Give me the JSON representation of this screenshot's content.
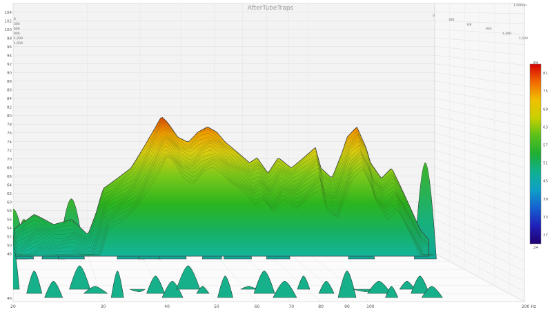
{
  "chart_data": {
    "type": "waterfall",
    "title": "AfterTubeTraps",
    "xscale": "log",
    "xlim": [
      20,
      200
    ],
    "x_ticks": [
      {
        "value": 20,
        "label": "20"
      },
      {
        "value": 30,
        "label": "30"
      },
      {
        "value": 40,
        "label": "40"
      },
      {
        "value": 50,
        "label": "50"
      },
      {
        "value": 60,
        "label": "60"
      },
      {
        "value": 70,
        "label": "70"
      },
      {
        "value": 80,
        "label": "80"
      },
      {
        "value": 90,
        "label": "90"
      },
      {
        "value": 100,
        "label": "100"
      },
      {
        "value": 200,
        "label": "200 Hz"
      }
    ],
    "ylim": [
      46,
      104
    ],
    "y_ticks": [
      "46",
      "48",
      "50",
      "52",
      "54",
      "56",
      "58",
      "60",
      "62",
      "64",
      "66",
      "68",
      "70",
      "72",
      "74",
      "76",
      "78",
      "80",
      "82",
      "84",
      "86",
      "88",
      "90",
      "92",
      "94",
      "96",
      "98",
      "100",
      "102",
      "104"
    ],
    "time_axis_labels": [
      "0",
      "395",
      "3|8",
      "903",
      "1,200",
      "1,500",
      "1,500ms"
    ],
    "time_axis_left_labels": [
      "0",
      "300",
      "600",
      "900",
      "1,200",
      "1,500"
    ],
    "colorbar": {
      "min": 24,
      "max": 84,
      "ticks": [
        "84",
        "81",
        "75",
        "69",
        "63",
        "57",
        "51",
        "45",
        "39",
        "33",
        "27",
        "24"
      ]
    },
    "front_trace": {
      "x": [
        20,
        22,
        24,
        26,
        28,
        29,
        30,
        32,
        34,
        36,
        38,
        39,
        40,
        42,
        44,
        46,
        48,
        50,
        52,
        55,
        58,
        60,
        63,
        66,
        70,
        74,
        78,
        80,
        84,
        88,
        90,
        94,
        98,
        100,
        105,
        110,
        115,
        120,
        125,
        130
      ],
      "y": [
        60,
        63,
        61,
        62,
        59,
        63,
        68,
        70,
        72,
        76,
        80,
        82,
        81,
        78,
        77,
        79,
        80,
        79,
        77,
        75,
        73,
        74,
        71,
        74,
        72,
        74,
        76,
        72,
        70,
        75,
        78,
        80,
        76,
        73,
        70,
        72,
        68,
        64,
        60,
        58
      ]
    }
  }
}
